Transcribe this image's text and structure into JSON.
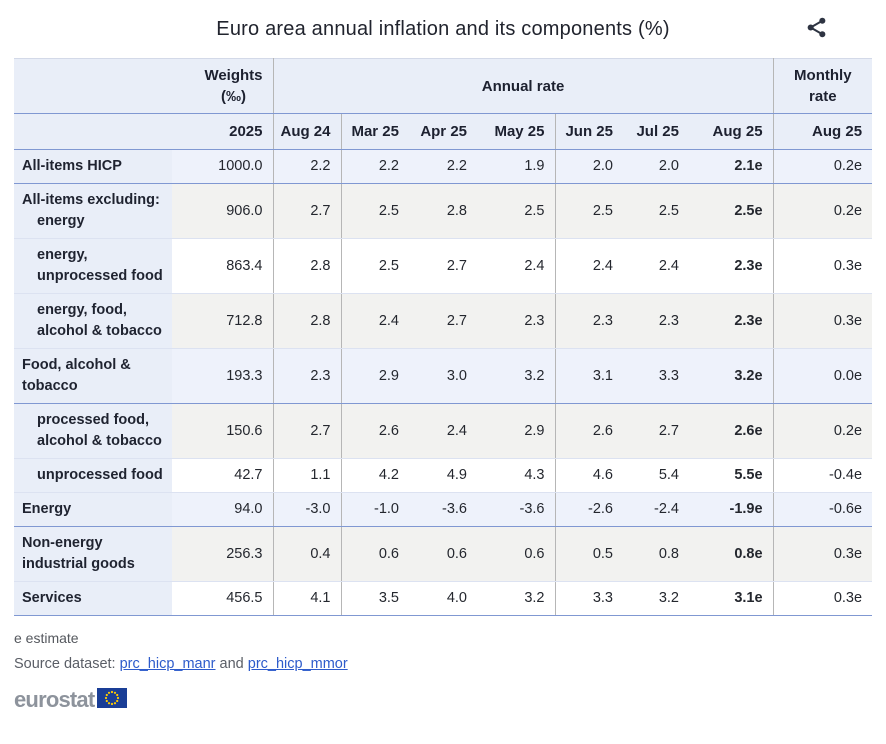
{
  "title": "Euro area annual inflation and its components (%)",
  "icons": {
    "share": "share-icon",
    "eu_flag": "eu-flag-icon"
  },
  "table": {
    "header": {
      "weights": [
        "Weights",
        "(‰)"
      ],
      "annual_rate": "Annual rate",
      "monthly_rate": [
        "Monthly",
        "rate"
      ],
      "year": "2025",
      "months": [
        "Aug 24",
        "Mar 25",
        "Apr 25",
        "May 25",
        "Jun 25",
        "Jul 25",
        "Aug 25"
      ],
      "monthly_month": "Aug 25"
    },
    "rows": [
      {
        "label_lines": [
          {
            "text": "All-items HICP",
            "indent": false
          }
        ],
        "weight": "1000.0",
        "annual": [
          "2.2",
          "2.2",
          "2.2",
          "1.9",
          "2.0",
          "2.0",
          "2.1e"
        ],
        "monthly": "0.2e",
        "bg": "tint",
        "strong_bottom": true
      },
      {
        "label_lines": [
          {
            "text": "All-items excluding:",
            "indent": false
          },
          {
            "text": "energy",
            "indent": true
          }
        ],
        "weight": "906.0",
        "annual": [
          "2.7",
          "2.5",
          "2.8",
          "2.5",
          "2.5",
          "2.5",
          "2.5e"
        ],
        "monthly": "0.2e",
        "bg": "gray",
        "strong_bottom": false
      },
      {
        "label_lines": [
          {
            "text": "energy,",
            "indent": true
          },
          {
            "text": "unprocessed food",
            "indent": true
          }
        ],
        "weight": "863.4",
        "annual": [
          "2.8",
          "2.5",
          "2.7",
          "2.4",
          "2.4",
          "2.4",
          "2.3e"
        ],
        "monthly": "0.3e",
        "bg": "white",
        "strong_bottom": false
      },
      {
        "label_lines": [
          {
            "text": "energy, food,",
            "indent": true
          },
          {
            "text": "alcohol & tobacco",
            "indent": true
          }
        ],
        "weight": "712.8",
        "annual": [
          "2.8",
          "2.4",
          "2.7",
          "2.3",
          "2.3",
          "2.3",
          "2.3e"
        ],
        "monthly": "0.3e",
        "bg": "gray",
        "strong_bottom": false
      },
      {
        "label_lines": [
          {
            "text": "Food, alcohol &",
            "indent": false
          },
          {
            "text": "tobacco",
            "indent": false
          }
        ],
        "weight": "193.3",
        "annual": [
          "2.3",
          "2.9",
          "3.0",
          "3.2",
          "3.1",
          "3.3",
          "3.2e"
        ],
        "monthly": "0.0e",
        "bg": "tint",
        "strong_bottom": true
      },
      {
        "label_lines": [
          {
            "text": "processed food,",
            "indent": true
          },
          {
            "text": "alcohol & tobacco",
            "indent": true
          }
        ],
        "weight": "150.6",
        "annual": [
          "2.7",
          "2.6",
          "2.4",
          "2.9",
          "2.6",
          "2.7",
          "2.6e"
        ],
        "monthly": "0.2e",
        "bg": "gray",
        "strong_bottom": false
      },
      {
        "label_lines": [
          {
            "text": "unprocessed food",
            "indent": true
          }
        ],
        "weight": "42.7",
        "annual": [
          "1.1",
          "4.2",
          "4.9",
          "4.3",
          "4.6",
          "5.4",
          "5.5e"
        ],
        "monthly": "-0.4e",
        "bg": "white",
        "strong_bottom": false
      },
      {
        "label_lines": [
          {
            "text": "Energy",
            "indent": false
          }
        ],
        "weight": "94.0",
        "annual": [
          "-3.0",
          "-1.0",
          "-3.6",
          "-3.6",
          "-2.6",
          "-2.4",
          "-1.9e"
        ],
        "monthly": "-0.6e",
        "bg": "tint",
        "strong_bottom": true
      },
      {
        "label_lines": [
          {
            "text": "Non-energy",
            "indent": false
          },
          {
            "text": "industrial goods",
            "indent": false
          }
        ],
        "weight": "256.3",
        "annual": [
          "0.4",
          "0.6",
          "0.6",
          "0.6",
          "0.5",
          "0.8",
          "0.8e"
        ],
        "monthly": "0.3e",
        "bg": "gray",
        "strong_bottom": false
      },
      {
        "label_lines": [
          {
            "text": "Services",
            "indent": false
          }
        ],
        "weight": "456.5",
        "annual": [
          "4.1",
          "3.5",
          "4.0",
          "3.2",
          "3.3",
          "3.2",
          "3.1e"
        ],
        "monthly": "0.3e",
        "bg": "white",
        "strong_bottom": true
      }
    ]
  },
  "footer": {
    "estimate_note": "e estimate",
    "source_label": "Source dataset: ",
    "link1": "prc_hicp_manr",
    "and_text": " and ",
    "link2": "prc_hicp_mmor",
    "logo_text": "eurostat"
  },
  "colors": {
    "accent_line": "#8098d2",
    "header_bg": "#e9eef8",
    "row_tint": "#eef2fb",
    "row_gray": "#f2f2f0",
    "link": "#2d5bcb",
    "eu_flag_blue": "#1a3e96",
    "star_yellow": "#ffcc00"
  }
}
